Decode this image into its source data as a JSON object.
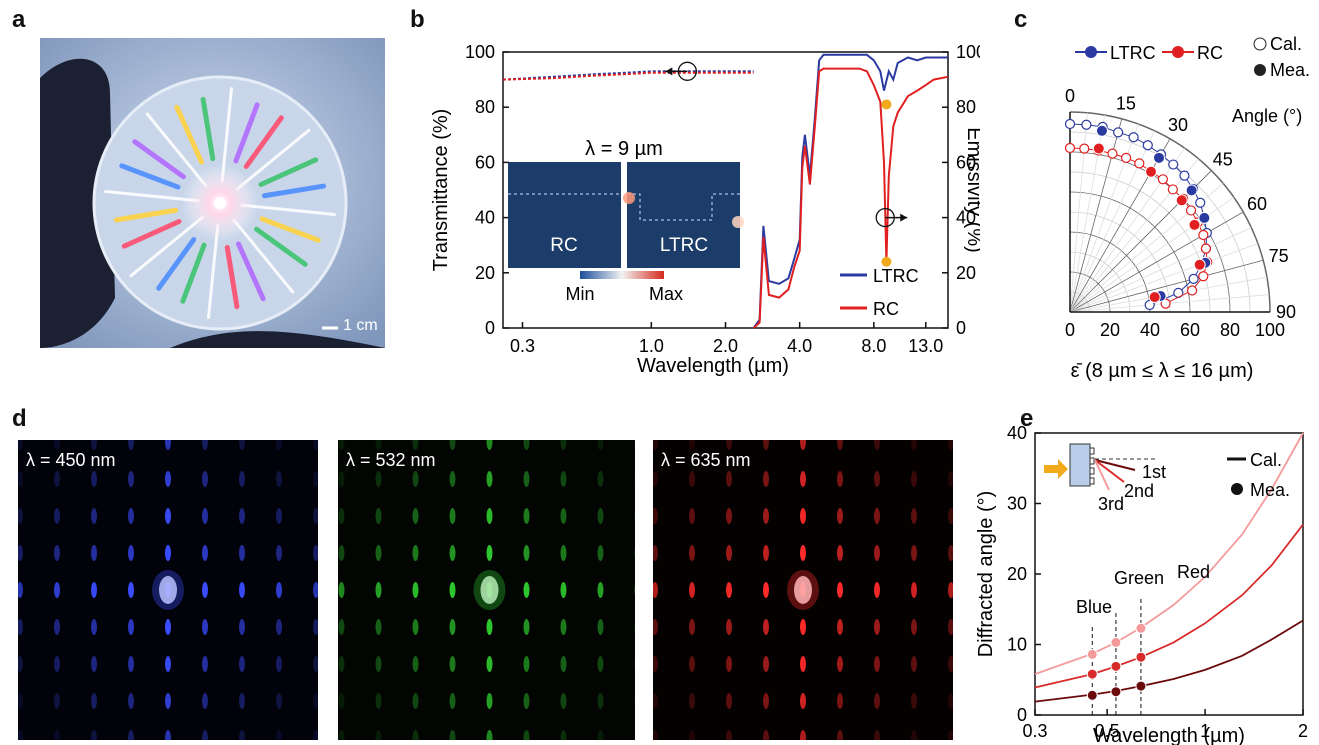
{
  "panels": {
    "a": {
      "label": "a",
      "scale_text": "1 cm"
    },
    "b": {
      "label": "b"
    },
    "c": {
      "label": "c"
    },
    "d": {
      "label": "d",
      "images": [
        {
          "text": "λ = 450 nm",
          "color": "#3a4cff"
        },
        {
          "text": "λ = 532 nm",
          "color": "#2ec52e"
        },
        {
          "text": "λ = 635 nm",
          "color": "#ff2a2a"
        }
      ]
    },
    "e": {
      "label": "e"
    }
  },
  "colors": {
    "ltrc": "#2b3aa0",
    "rc": "#e02020",
    "marker": "#f2a91c"
  },
  "chart_data": [
    {
      "panel": "b",
      "type": "line",
      "xlabel": "Wavelength (µm)",
      "ylabel": "Transmittance (%)",
      "y2label": "Emissivity (%)",
      "x_scale": "log",
      "xlim": [
        0.25,
        16
      ],
      "ylim": [
        0,
        100
      ],
      "y2lim": [
        0,
        100
      ],
      "x_ticks": [
        {
          "v": 0.3,
          "t": "0.3"
        },
        {
          "v": 1.0,
          "t": "1.0"
        },
        {
          "v": 2.0,
          "t": "2.0"
        },
        {
          "v": 4.0,
          "t": "4.0"
        },
        {
          "v": 8.0,
          "t": "8.0"
        },
        {
          "v": 13.0,
          "t": "13.0"
        }
      ],
      "y_ticks": [
        "0",
        "20",
        "40",
        "60",
        "80",
        "100"
      ],
      "legend": [
        "LTRC",
        "RC"
      ],
      "inset": {
        "title": "λ = 9 µm",
        "left_label": "RC",
        "right_label": "LTRC",
        "min_label": "Min",
        "max_label": "Max"
      },
      "series": [
        {
          "name": "LTRC",
          "x": [
            0.25,
            0.4,
            0.6,
            0.8,
            1.0,
            1.5,
            2.0,
            2.6
          ],
          "y": [
            90,
            91,
            92,
            92.5,
            93,
            93,
            93,
            93
          ]
        },
        {
          "name": "RC",
          "x": [
            0.25,
            0.4,
            0.6,
            0.8,
            1.0,
            1.5,
            2.0,
            2.6
          ],
          "y": [
            90,
            90.5,
            91.5,
            92,
            92.5,
            92.5,
            92.5,
            92.5
          ]
        },
        {
          "name": "LTRC",
          "x": [
            2.6,
            2.75,
            2.85,
            3.0,
            3.3,
            3.6,
            3.8,
            4.0,
            4.1,
            4.2,
            4.4,
            4.6,
            4.8,
            5.0,
            6.0,
            7.0,
            7.5,
            8.0,
            8.5,
            8.8,
            9.2,
            9.6,
            10,
            11,
            12,
            13,
            14,
            16
          ],
          "y": [
            0,
            3,
            37,
            17,
            16,
            18,
            25,
            32,
            62,
            70,
            55,
            75,
            97,
            99,
            99,
            99,
            99,
            97,
            93,
            86,
            93,
            90,
            96,
            98,
            97,
            98,
            98,
            98
          ]
        },
        {
          "name": "RC",
          "x": [
            2.6,
            2.75,
            2.85,
            3.0,
            3.3,
            3.6,
            3.8,
            4.0,
            4.1,
            4.2,
            4.4,
            4.6,
            4.8,
            5.0,
            6.0,
            7.0,
            7.5,
            8.0,
            8.5,
            8.8,
            9.0,
            9.2,
            9.6,
            10,
            11,
            12,
            13,
            14,
            16
          ],
          "y": [
            0,
            2,
            33,
            12,
            11,
            14,
            22,
            28,
            58,
            66,
            52,
            72,
            93,
            94,
            94,
            94,
            93,
            88,
            82,
            60,
            24,
            55,
            73,
            78,
            84,
            86,
            88,
            90,
            91
          ]
        }
      ],
      "markers": [
        {
          "x": 9.0,
          "y": 81
        },
        {
          "x": 9.0,
          "y": 24
        }
      ],
      "arrows": [
        {
          "x": 1.4,
          "y": 93,
          "direction": "left"
        },
        {
          "x": 8.9,
          "y": 40,
          "direction": "right"
        }
      ]
    },
    {
      "panel": "c",
      "type": "polar",
      "xlabel": "ε̄ (8 µm ≤ λ ≤ 16 µm)",
      "angle_label": "Angle (°)",
      "r_ticks": [
        "0",
        "20",
        "40",
        "60",
        "80",
        "100"
      ],
      "angle_ticks": [
        "0",
        "15",
        "30",
        "45",
        "60",
        "75",
        "90"
      ],
      "legend": [
        "LTRC",
        "RC",
        "Cal.",
        "Mea."
      ],
      "series": [
        {
          "name": "LTRC Cal.",
          "angles": [
            0,
            5,
            10,
            15,
            20,
            25,
            30,
            35,
            40,
            45,
            50,
            55,
            60,
            65,
            70,
            75,
            80,
            85
          ],
          "values": [
            94,
            94,
            94,
            93,
            93,
            92,
            91,
            90,
            89,
            87,
            85,
            82,
            79,
            75,
            70,
            64,
            55,
            40
          ]
        },
        {
          "name": "RC Cal.",
          "angles": [
            0,
            5,
            10,
            15,
            20,
            25,
            30,
            35,
            40,
            45,
            50,
            55,
            60,
            65,
            70,
            75,
            80,
            85
          ],
          "values": [
            82,
            82,
            82,
            82,
            82,
            82,
            81,
            81,
            80,
            80,
            79,
            78,
            77,
            75,
            73,
            69,
            62,
            48
          ]
        },
        {
          "name": "LTRC Mea.",
          "angles": [
            10,
            30,
            45,
            55,
            70,
            80
          ],
          "values": [
            92,
            89,
            86,
            82,
            72,
            46
          ]
        },
        {
          "name": "RC Mea.",
          "angles": [
            10,
            30,
            45,
            55,
            70,
            80
          ],
          "values": [
            83,
            81,
            79,
            76,
            69,
            43
          ]
        }
      ]
    },
    {
      "panel": "e",
      "type": "line",
      "xlabel": "Wavelength (µm)",
      "ylabel": "Diffracted angle (°)",
      "x_scale": "log",
      "xlim": [
        0.3,
        2
      ],
      "ylim": [
        0,
        40
      ],
      "x_ticks": [
        {
          "v": 0.3,
          "t": "0.3"
        },
        {
          "v": 0.5,
          "t": "0.5"
        },
        {
          "v": 1,
          "t": "1"
        },
        {
          "v": 2,
          "t": "2"
        }
      ],
      "y_ticks": [
        "0",
        "10",
        "20",
        "30",
        "40"
      ],
      "legend": [
        "Cal.",
        "Mea."
      ],
      "inset_orders": [
        "1st",
        "2nd",
        "3rd"
      ],
      "point_labels": [
        "Blue",
        "Green",
        "Red"
      ],
      "series": [
        {
          "name": "1st",
          "color": "#6b0a0a",
          "x": [
            0.3,
            0.45,
            0.532,
            0.635,
            0.8,
            1.0,
            1.3,
            1.6,
            2.0
          ],
          "y": [
            1.9,
            2.9,
            3.4,
            4.1,
            5.1,
            6.4,
            8.4,
            10.7,
            13.4
          ]
        },
        {
          "name": "2nd",
          "color": "#d82c2c",
          "x": [
            0.3,
            0.45,
            0.532,
            0.635,
            0.8,
            1.0,
            1.3,
            1.6,
            2.0
          ],
          "y": [
            3.9,
            5.8,
            6.9,
            8.2,
            10.3,
            13.0,
            17.0,
            21.2,
            27.0
          ]
        },
        {
          "name": "3rd",
          "color": "#f59a9a",
          "x": [
            0.3,
            0.45,
            0.532,
            0.635,
            0.8,
            1.0,
            1.3,
            1.6,
            2.0
          ],
          "y": [
            5.8,
            8.7,
            10.3,
            12.4,
            15.6,
            19.6,
            25.6,
            32.0,
            40.0
          ]
        }
      ],
      "measured": [
        {
          "x": 0.45,
          "y": [
            2.8,
            5.8,
            8.6
          ]
        },
        {
          "x": 0.532,
          "y": [
            3.3,
            6.9,
            10.3
          ]
        },
        {
          "x": 0.635,
          "y": [
            4.1,
            8.2,
            12.3
          ]
        }
      ]
    }
  ]
}
